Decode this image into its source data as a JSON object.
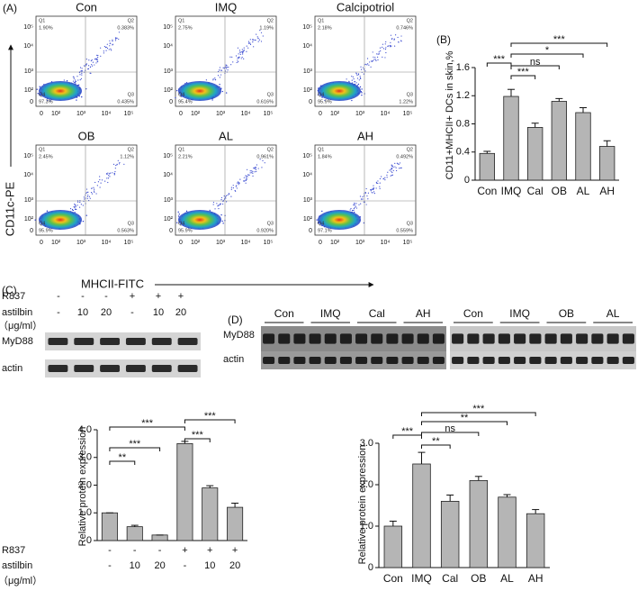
{
  "flow": {
    "label": "(A)",
    "y_axis_label": "CD11c-PE",
    "x_axis_label": "MHCII-FITC",
    "y_ticks": [
      "10⁵",
      "10⁴",
      "10³",
      "10²",
      "0"
    ],
    "x_ticks": [
      "0",
      "10²",
      "10³",
      "10⁴",
      "10⁵"
    ],
    "plots": [
      {
        "title": "Con",
        "quadrants": [
          {
            "name": "Q1",
            "value": "1.90%"
          },
          {
            "name": "Q2",
            "value": "0.383%"
          },
          {
            "name": "Q3",
            "value": "0.435%"
          },
          {
            "name": "Q4",
            "value": "97.3%"
          }
        ]
      },
      {
        "title": "IMQ",
        "quadrants": [
          {
            "name": "Q1",
            "value": "2.75%"
          },
          {
            "name": "Q2",
            "value": "1.19%"
          },
          {
            "name": "Q3",
            "value": "0.616%"
          },
          {
            "name": "Q4",
            "value": "95.4%"
          }
        ]
      },
      {
        "title": "Calcipotriol",
        "quadrants": [
          {
            "name": "Q1",
            "value": "2.18%"
          },
          {
            "name": "Q2",
            "value": "0.746%"
          },
          {
            "name": "Q3",
            "value": "1.22%"
          },
          {
            "name": "Q4",
            "value": "95.9%"
          }
        ]
      },
      {
        "title": "OB",
        "quadrants": [
          {
            "name": "Q1",
            "value": "2.45%"
          },
          {
            "name": "Q2",
            "value": "1.12%"
          },
          {
            "name": "Q3",
            "value": "0.563%"
          },
          {
            "name": "Q4",
            "value": "95.9%"
          }
        ]
      },
      {
        "title": "AL",
        "quadrants": [
          {
            "name": "Q1",
            "value": "2.21%"
          },
          {
            "name": "Q2",
            "value": "0.961%"
          },
          {
            "name": "Q3",
            "value": "0.920%"
          },
          {
            "name": "Q4",
            "value": "95.9%"
          }
        ]
      },
      {
        "title": "AH",
        "quadrants": [
          {
            "name": "Q1",
            "value": "1.84%"
          },
          {
            "name": "Q2",
            "value": "0.492%"
          },
          {
            "name": "Q3",
            "value": "0.559%"
          },
          {
            "name": "Q4",
            "value": "97.1%"
          }
        ]
      }
    ]
  },
  "blot_c": {
    "label": "(C)",
    "rows": [
      {
        "label": "R837",
        "cells": [
          "-",
          "-",
          "-",
          "+",
          "+",
          "+"
        ]
      },
      {
        "label": "astilbin",
        "cells": [
          "-",
          "10",
          "20",
          "-",
          "10",
          "20"
        ]
      }
    ],
    "unit": "（μg/ml）",
    "bands": [
      "MyD88",
      "actin"
    ]
  },
  "blot_d": {
    "label": "(D)",
    "groups_left": [
      "Con",
      "IMQ",
      "Cal",
      "AH"
    ],
    "groups_right": [
      "Con",
      "IMQ",
      "OB",
      "AL"
    ],
    "bands": [
      "MyD88",
      "actin"
    ]
  },
  "chart_data": [
    {
      "type": "bar",
      "panel_label": "(B)",
      "y_label": "CD11+MHCII+ DCs in skin,%",
      "categories": [
        "Con",
        "IMQ",
        "Cal",
        "OB",
        "AL",
        "AH"
      ],
      "values": [
        0.38,
        1.19,
        0.75,
        1.12,
        0.96,
        0.48
      ],
      "errors": [
        0.03,
        0.1,
        0.06,
        0.04,
        0.07,
        0.08
      ],
      "ylim": [
        0,
        1.6
      ],
      "yticks": [
        0,
        0.4,
        0.8,
        1.2,
        1.6
      ],
      "color": "#b5b5b5",
      "annotations": [
        "***",
        "***",
        "ns",
        "*",
        "***"
      ]
    },
    {
      "type": "bar",
      "y_label": "Relative protein expression",
      "values": [
        1.0,
        0.5,
        0.2,
        3.5,
        1.9,
        1.2
      ],
      "errors": [
        0,
        0.05,
        0,
        0.08,
        0.08,
        0.15
      ],
      "ylim": [
        0,
        4
      ],
      "yticks": [
        0,
        {
          "value": 1,
          "label": "1.0"
        },
        {
          "value": 2,
          "label": "2.0"
        },
        {
          "value": 3,
          "label": "3.0"
        },
        {
          "value": 4,
          "label": "4.0"
        }
      ],
      "color": "#b5b5b5",
      "rows": [
        {
          "label": "R837",
          "cells": [
            "-",
            "-",
            "-",
            "+",
            "+",
            "+"
          ]
        },
        {
          "label": "astilbin",
          "cells": [
            "-",
            "10",
            "20",
            "-",
            "10",
            "20"
          ]
        }
      ],
      "unit": "（μg/ml）",
      "annotations": [
        "**",
        "***",
        "***",
        "***",
        "***"
      ]
    },
    {
      "type": "bar",
      "y_label": "Relative protein expression",
      "categories": [
        "Con",
        "IMQ",
        "Cal",
        "OB",
        "AL",
        "AH"
      ],
      "values": [
        1.0,
        2.5,
        1.6,
        2.1,
        1.7,
        1.3
      ],
      "errors": [
        0.12,
        0.28,
        0.15,
        0.1,
        0.06,
        0.1
      ],
      "ylim": [
        0,
        3
      ],
      "yticks": [
        0,
        {
          "value": 1,
          "label": "1.0"
        },
        {
          "value": 2,
          "label": "2.0"
        },
        {
          "value": 3,
          "label": "3.0"
        }
      ],
      "color": "#b5b5b5",
      "annotations": [
        "***",
        "**",
        "ns",
        "**",
        "***"
      ]
    }
  ]
}
